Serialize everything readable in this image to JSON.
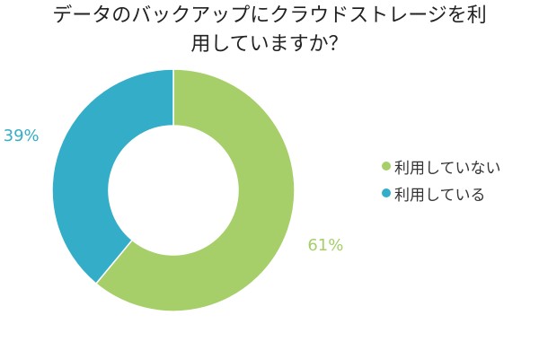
{
  "chart_data": {
    "type": "pie",
    "variant": "donut",
    "title_lines": [
      "データのバックアップにクラウドストレージを利",
      "用していますか？"
    ],
    "slices": [
      {
        "label": "利用していない",
        "value": 61,
        "display": "61%",
        "color": "#a6cf6a"
      },
      {
        "label": "利用している",
        "value": 39,
        "display": "39%",
        "color": "#34adc8"
      }
    ],
    "legend_position": "right",
    "start_angle": "12 o'clock",
    "direction": "clockwise"
  }
}
